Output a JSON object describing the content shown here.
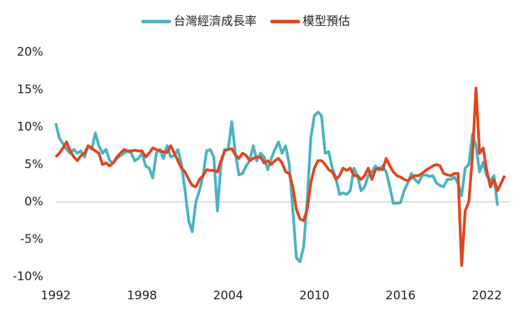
{
  "chart_data": {
    "type": "line",
    "x": [
      1992,
      1992.25,
      1992.5,
      1992.75,
      1993,
      1993.25,
      1993.5,
      1993.75,
      1994,
      1994.25,
      1994.5,
      1994.75,
      1995,
      1995.25,
      1995.5,
      1995.75,
      1996,
      1996.25,
      1996.5,
      1996.75,
      1997,
      1997.25,
      1997.5,
      1997.75,
      1998,
      1998.25,
      1998.5,
      1998.75,
      1999,
      1999.25,
      1999.5,
      1999.75,
      2000,
      2000.25,
      2000.5,
      2000.75,
      2001,
      2001.25,
      2001.5,
      2001.75,
      2002,
      2002.25,
      2002.5,
      2002.75,
      2003,
      2003.25,
      2003.5,
      2003.75,
      2004,
      2004.25,
      2004.5,
      2004.75,
      2005,
      2005.25,
      2005.5,
      2005.75,
      2006,
      2006.25,
      2006.5,
      2006.75,
      2007,
      2007.25,
      2007.5,
      2007.75,
      2008,
      2008.25,
      2008.5,
      2008.75,
      2009,
      2009.25,
      2009.5,
      2009.75,
      2010,
      2010.25,
      2010.5,
      2010.75,
      2011,
      2011.25,
      2011.5,
      2011.75,
      2012,
      2012.25,
      2012.5,
      2012.75,
      2013,
      2013.25,
      2013.5,
      2013.75,
      2014,
      2014.25,
      2014.5,
      2014.75,
      2015,
      2015.25,
      2015.5,
      2015.75,
      2016,
      2016.25,
      2016.5,
      2016.75,
      2017,
      2017.25,
      2017.5,
      2017.75,
      2018,
      2018.25,
      2018.5,
      2018.75,
      2019,
      2019.25,
      2019.5,
      2019.75,
      2020,
      2020.25,
      2020.5,
      2020.75,
      2021,
      2021.25,
      2021.5,
      2021.75,
      2022,
      2022.25,
      2022.5,
      2022.75,
      2023,
      2023.25
    ],
    "series": [
      {
        "name": "台灣經濟成長率",
        "color": "#4bb3c0",
        "values": [
          10.5,
          8.5,
          7.8,
          7.0,
          6.5,
          7.0,
          6.5,
          6.8,
          6.0,
          7.5,
          7.0,
          9.2,
          7.5,
          6.5,
          7.0,
          5.5,
          5.2,
          5.8,
          6.2,
          6.5,
          6.8,
          6.5,
          5.5,
          5.8,
          6.5,
          4.8,
          4.5,
          3.2,
          6.5,
          7.0,
          5.8,
          7.5,
          6.0,
          6.2,
          7.0,
          5.0,
          1.5,
          -2.5,
          -4.0,
          0.0,
          1.5,
          3.5,
          6.8,
          7.0,
          6.0,
          -1.2,
          5.0,
          7.0,
          7.0,
          10.7,
          6.5,
          3.6,
          3.8,
          4.8,
          5.5,
          7.5,
          5.5,
          6.5,
          6.0,
          4.3,
          5.8,
          7.0,
          8.0,
          6.5,
          7.5,
          5.0,
          -1.0,
          -7.5,
          -8.0,
          -6.0,
          0.0,
          8.5,
          11.5,
          12.0,
          11.5,
          6.5,
          6.7,
          4.5,
          3.2,
          1.0,
          1.2,
          1.0,
          1.5,
          4.5,
          3.5,
          1.5,
          2.0,
          3.5,
          4.0,
          4.8,
          4.2,
          4.8,
          4.0,
          2.0,
          -0.2,
          -0.2,
          -0.1,
          1.5,
          2.5,
          3.8,
          3.0,
          2.5,
          3.5,
          3.6,
          3.4,
          3.5,
          2.5,
          2.2,
          2.0,
          3.0,
          3.0,
          3.3,
          2.5,
          0.8,
          4.5,
          5.0,
          9.0,
          7.5,
          4.0,
          5.3,
          3.5,
          2.8,
          3.5,
          -0.5,
          null,
          null
        ]
      },
      {
        "name": "模型預估",
        "color": "#e0461f",
        "values": [
          6.0,
          6.5,
          7.2,
          8.0,
          6.8,
          6.0,
          5.5,
          6.2,
          6.5,
          7.5,
          7.2,
          6.8,
          6.5,
          5.0,
          5.2,
          4.8,
          5.2,
          6.0,
          6.5,
          7.0,
          6.8,
          6.8,
          6.9,
          6.8,
          6.8,
          6.0,
          6.5,
          7.2,
          7.0,
          6.8,
          6.7,
          6.6,
          7.5,
          6.5,
          5.5,
          4.5,
          4.0,
          3.0,
          2.2,
          2.0,
          3.0,
          3.5,
          4.3,
          4.2,
          4.2,
          4.0,
          5.5,
          6.8,
          7.0,
          7.1,
          6.3,
          5.8,
          6.5,
          6.2,
          5.5,
          5.8,
          6.0,
          6.0,
          5.2,
          5.5,
          5.0,
          5.5,
          5.8,
          5.2,
          4.0,
          3.8,
          2.0,
          -1.0,
          -2.3,
          -2.5,
          -1.0,
          2.5,
          4.5,
          5.5,
          5.5,
          5.0,
          4.3,
          4.0,
          3.0,
          3.5,
          4.5,
          4.2,
          4.5,
          3.5,
          3.5,
          3.0,
          3.5,
          4.5,
          3.0,
          4.3,
          4.5,
          4.3,
          5.8,
          4.8,
          4.0,
          3.5,
          3.3,
          3.0,
          2.8,
          3.2,
          3.5,
          3.5,
          3.8,
          4.2,
          4.5,
          4.8,
          5.0,
          4.8,
          3.8,
          3.6,
          3.5,
          3.8,
          3.8,
          -8.5,
          -1.2,
          0.0,
          6.0,
          15.2,
          6.5,
          7.2,
          4.2,
          2.0,
          3.0,
          1.5,
          2.5,
          3.5
        ]
      }
    ],
    "xlim": [
      1992,
      2023.6
    ],
    "xticks": [
      1992,
      1998,
      2004,
      2010,
      2016,
      2022
    ],
    "ylim": [
      -10,
      20
    ],
    "yticks": [
      {
        "value": -10,
        "label": "-10%"
      },
      {
        "value": -5,
        "label": "-5%"
      },
      {
        "value": 0,
        "label": "0%"
      },
      {
        "value": 5,
        "label": "5%"
      },
      {
        "value": 10,
        "label": "10%"
      },
      {
        "value": 15,
        "label": "15%"
      },
      {
        "value": 20,
        "label": "20%"
      }
    ],
    "zero_line": true,
    "legend": "top"
  }
}
